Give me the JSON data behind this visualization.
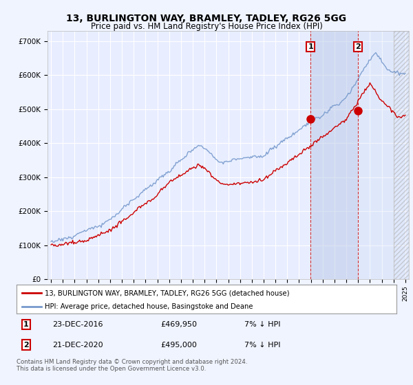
{
  "title": "13, BURLINGTON WAY, BRAMLEY, TADLEY, RG26 5GG",
  "subtitle": "Price paid vs. HM Land Registry's House Price Index (HPI)",
  "ylabel_ticks": [
    "£0",
    "£100K",
    "£200K",
    "£300K",
    "£400K",
    "£500K",
    "£600K",
    "£700K"
  ],
  "ytick_values": [
    0,
    100000,
    200000,
    300000,
    400000,
    500000,
    600000,
    700000
  ],
  "ylim": [
    0,
    730000
  ],
  "legend_line1": "13, BURLINGTON WAY, BRAMLEY, TADLEY, RG26 5GG (detached house)",
  "legend_line2": "HPI: Average price, detached house, Basingstoke and Deane",
  "annotation1_date": "23-DEC-2016",
  "annotation1_price": "£469,950",
  "annotation1_hpi": "7% ↓ HPI",
  "annotation2_date": "21-DEC-2020",
  "annotation2_price": "£495,000",
  "annotation2_hpi": "7% ↓ HPI",
  "footer": "Contains HM Land Registry data © Crown copyright and database right 2024.\nThis data is licensed under the Open Government Licence v3.0.",
  "background_color": "#f0f4ff",
  "plot_bg_color": "#e8eeff",
  "grid_color": "#ffffff",
  "hpi_color": "#7799cc",
  "price_color": "#cc0000",
  "marker1_x_year": 2016.97,
  "marker1_y": 469950,
  "marker2_x_year": 2020.97,
  "marker2_y": 495000,
  "vline1_x": 2016.97,
  "vline2_x": 2020.97,
  "xlim_left": 1994.7,
  "xlim_right": 2025.3,
  "hatch_start": 2024.0
}
